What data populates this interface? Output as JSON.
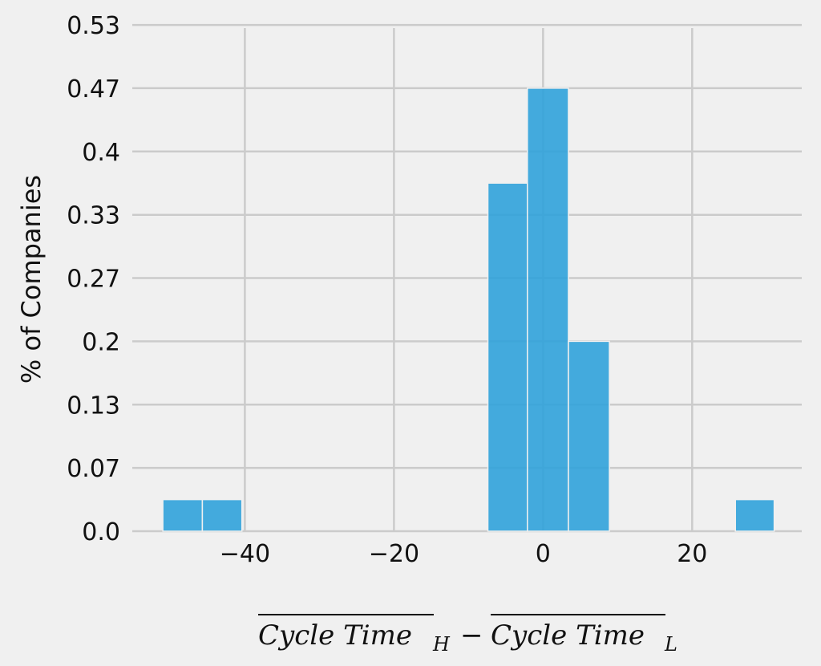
{
  "chart_data": {
    "type": "bar",
    "subtype": "histogram",
    "bins": [
      {
        "x0": -51.0,
        "x1": -45.7,
        "value": 0.0333
      },
      {
        "x0": -45.7,
        "x1": -40.4,
        "value": 0.0333
      },
      {
        "x0": -7.4,
        "x1": -2.1,
        "value": 0.3667
      },
      {
        "x0": -2.1,
        "x1": 3.4,
        "value": 0.4667
      },
      {
        "x0": 3.4,
        "x1": 8.9,
        "value": 0.2
      },
      {
        "x0": 25.8,
        "x1": 31.0,
        "value": 0.0333
      }
    ],
    "ylabel": "% of Companies",
    "xlabel_parts": {
      "term": "Cycle Time",
      "sub_h": "H",
      "sub_l": "L",
      "operator": "−"
    },
    "xlim": [
      -55.1,
      34.7
    ],
    "ylim": [
      0.0,
      0.53
    ],
    "xticks": [
      -40,
      -20,
      0,
      20
    ],
    "xtick_labels": [
      "−40",
      "−20",
      "0",
      "20"
    ],
    "yticks": [
      0.0,
      0.0667,
      0.1333,
      0.2,
      0.2667,
      0.3333,
      0.4,
      0.4667,
      0.5333
    ],
    "ytick_labels": [
      "0.0",
      "0.07",
      "0.13",
      "0.2",
      "0.27",
      "0.33",
      "0.4",
      "0.47",
      "0.53"
    ],
    "grid": true,
    "legend": false,
    "colors": {
      "bar": "#30a2da",
      "grid": "#cbcbcb",
      "background": "#f0f0f0"
    }
  }
}
